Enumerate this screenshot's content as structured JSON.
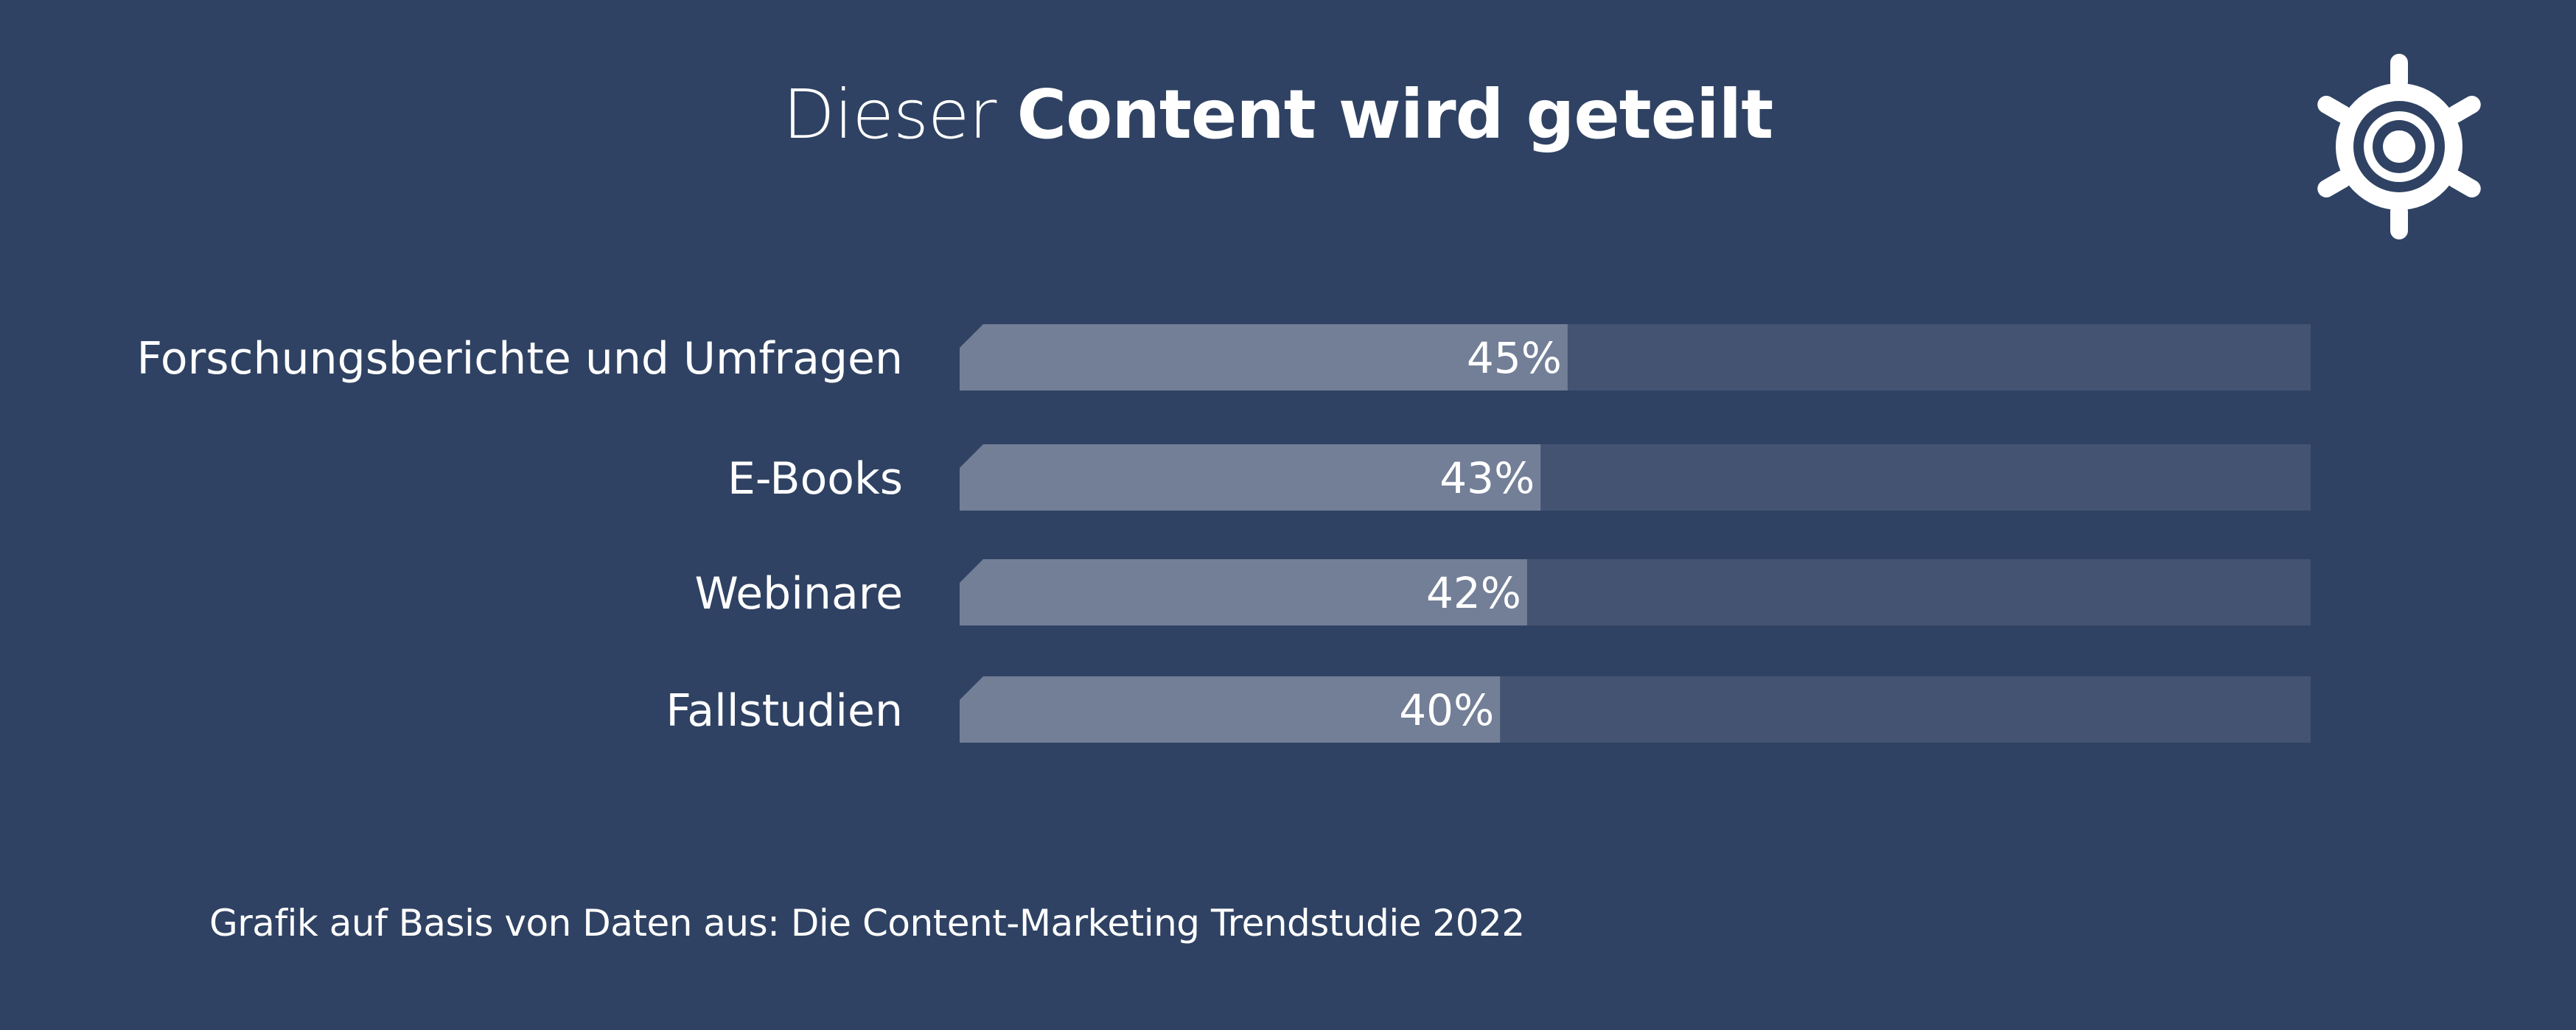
{
  "title": {
    "light": "Dieser",
    "bold": "Content wird geteilt"
  },
  "logo": {
    "icon": "ship-wheel-icon",
    "color": "#ffffff"
  },
  "colors": {
    "background": "#2f4263",
    "bar_fill": "#737f97",
    "bar_track": "#445371",
    "text": "#ffffff"
  },
  "chart_data": {
    "type": "bar",
    "orientation": "horizontal",
    "categories": [
      "Forschungsberichte und Umfragen",
      "E-Books",
      "Webinare",
      "Fallstudien"
    ],
    "values": [
      45,
      43,
      42,
      40
    ],
    "value_labels": [
      "45%",
      "43%",
      "42%",
      "40%"
    ],
    "xlim": [
      0,
      100
    ],
    "grid": false,
    "legend": "none"
  },
  "source": "Grafik auf Basis von Daten aus: Die Content-Marketing Trendstudie 2022"
}
